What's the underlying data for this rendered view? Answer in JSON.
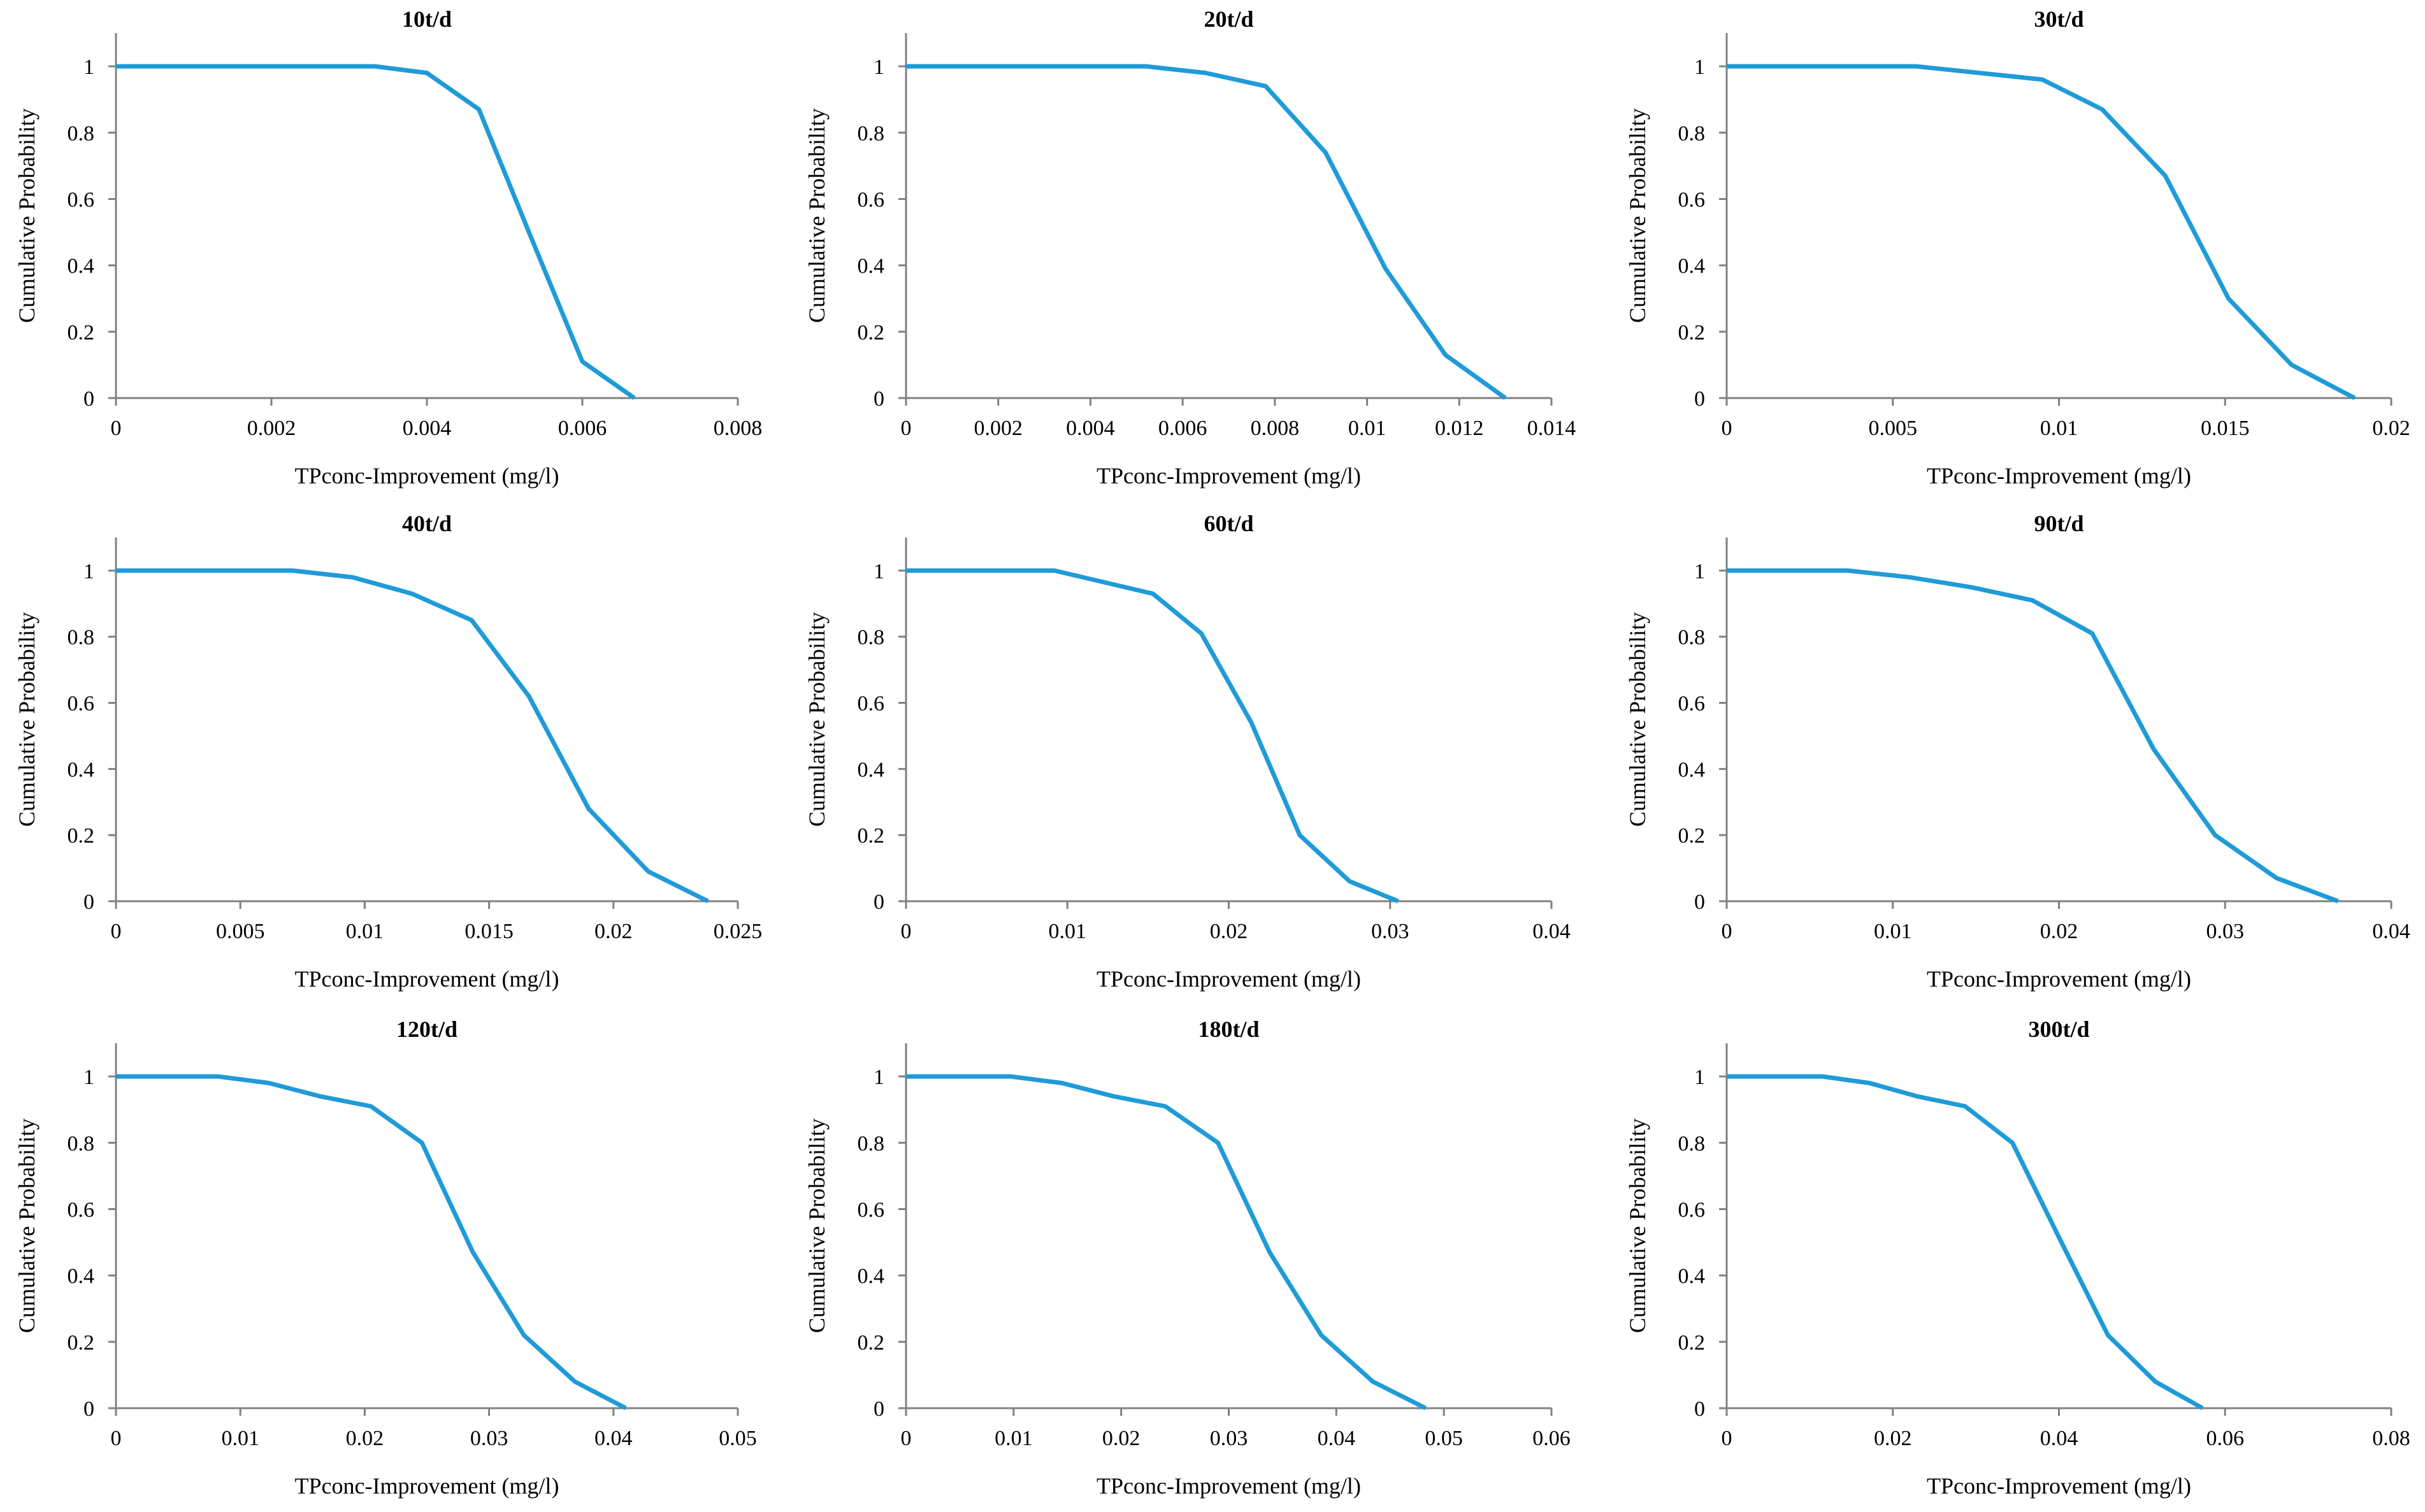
{
  "chart_data": [
    {
      "type": "line",
      "title": "10t/d",
      "xlabel": "TPconc-Improvement (mg/l)",
      "ylabel": "Cumulative Probability",
      "xlim": [
        0,
        0.008
      ],
      "ylim": [
        0,
        1.1
      ],
      "xticks": [
        0,
        0.002,
        0.004,
        0.006,
        0.008
      ],
      "xtick_labels": [
        "0",
        "0.002",
        "0.004",
        "0.006",
        "0.008"
      ],
      "yticks": [
        0,
        0.2,
        0.4,
        0.6,
        0.8,
        1
      ],
      "ytick_labels": [
        "0",
        "0.2",
        "0.4",
        "0.6",
        "0.8",
        "1"
      ],
      "series": [
        {
          "name": "10t/d",
          "color": "#1f9bd8",
          "x": [
            0,
            0.00333,
            0.004,
            0.00467,
            0.00533,
            0.006,
            0.00667
          ],
          "y": [
            1,
            1,
            0.98,
            0.87,
            0.49,
            0.11,
            0
          ]
        }
      ]
    },
    {
      "type": "line",
      "title": "20t/d",
      "xlabel": "TPconc-Improvement (mg/l)",
      "ylabel": "Cumulative Probability",
      "xlim": [
        0,
        0.014
      ],
      "ylim": [
        0,
        1.1
      ],
      "xticks": [
        0,
        0.002,
        0.004,
        0.006,
        0.008,
        0.01,
        0.012,
        0.014
      ],
      "xtick_labels": [
        "0",
        "0.002",
        "0.004",
        "0.006",
        "0.008",
        "0.01",
        "0.012",
        "0.014"
      ],
      "yticks": [
        0,
        0.2,
        0.4,
        0.6,
        0.8,
        1
      ],
      "ytick_labels": [
        "0",
        "0.2",
        "0.4",
        "0.6",
        "0.8",
        "1"
      ],
      "series": [
        {
          "name": "20t/d",
          "color": "#1f9bd8",
          "x": [
            0,
            0.0052,
            0.0065,
            0.0078,
            0.0091,
            0.0104,
            0.0117,
            0.013
          ],
          "y": [
            1,
            1,
            0.98,
            0.94,
            0.74,
            0.39,
            0.13,
            0
          ]
        }
      ]
    },
    {
      "type": "line",
      "title": "30t/d",
      "xlabel": "TPconc-Improvement (mg/l)",
      "ylabel": "Cumulative Probability",
      "xlim": [
        0,
        0.02
      ],
      "ylim": [
        0,
        1.1
      ],
      "xticks": [
        0,
        0.005,
        0.01,
        0.015,
        0.02
      ],
      "xtick_labels": [
        "0",
        "0.005",
        "0.01",
        "0.015",
        "0.02"
      ],
      "yticks": [
        0,
        0.2,
        0.4,
        0.6,
        0.8,
        1
      ],
      "ytick_labels": [
        "0",
        "0.2",
        "0.4",
        "0.6",
        "0.8",
        "1"
      ],
      "series": [
        {
          "name": "30t/d",
          "color": "#1f9bd8",
          "x": [
            0,
            0.0057,
            0.0095,
            0.0113,
            0.0132,
            0.0151,
            0.017,
            0.0189
          ],
          "y": [
            1,
            1,
            0.96,
            0.87,
            0.67,
            0.3,
            0.1,
            0
          ]
        }
      ]
    },
    {
      "type": "line",
      "title": "40t/d",
      "xlabel": "TPconc-Improvement (mg/l)",
      "ylabel": "Cumulative Probability",
      "xlim": [
        0,
        0.025
      ],
      "ylim": [
        0,
        1.1
      ],
      "xticks": [
        0,
        0.005,
        0.01,
        0.015,
        0.02,
        0.025
      ],
      "xtick_labels": [
        "0",
        "0.005",
        "0.01",
        "0.015",
        "0.02",
        "0.025"
      ],
      "yticks": [
        0,
        0.2,
        0.4,
        0.6,
        0.8,
        1
      ],
      "ytick_labels": [
        "0",
        "0.2",
        "0.4",
        "0.6",
        "0.8",
        "1"
      ],
      "series": [
        {
          "name": "40t/d",
          "color": "#1f9bd8",
          "x": [
            0,
            0.0071,
            0.0095,
            0.0119,
            0.0143,
            0.0166,
            0.019,
            0.0214,
            0.0238
          ],
          "y": [
            1,
            1,
            0.98,
            0.93,
            0.85,
            0.62,
            0.28,
            0.09,
            0
          ]
        }
      ]
    },
    {
      "type": "line",
      "title": "60t/d",
      "xlabel": "TPconc-Improvement (mg/l)",
      "ylabel": "Cumulative Probability",
      "xlim": [
        0,
        0.04
      ],
      "ylim": [
        0,
        1.1
      ],
      "xticks": [
        0,
        0.01,
        0.02,
        0.03,
        0.04
      ],
      "xtick_labels": [
        "0",
        "0.01",
        "0.02",
        "0.03",
        "0.04"
      ],
      "yticks": [
        0,
        0.2,
        0.4,
        0.6,
        0.8,
        1
      ],
      "ytick_labels": [
        "0",
        "0.2",
        "0.4",
        "0.6",
        "0.8",
        "1"
      ],
      "series": [
        {
          "name": "60t/d",
          "color": "#1f9bd8",
          "x": [
            0,
            0.0092,
            0.0153,
            0.0183,
            0.0214,
            0.0244,
            0.0275,
            0.0305
          ],
          "y": [
            1,
            1,
            0.93,
            0.81,
            0.54,
            0.2,
            0.06,
            0
          ]
        }
      ]
    },
    {
      "type": "line",
      "title": "90t/d",
      "xlabel": "TPconc-Improvement (mg/l)",
      "ylabel": "Cumulative Probability",
      "xlim": [
        0,
        0.04
      ],
      "ylim": [
        0,
        1.1
      ],
      "xticks": [
        0,
        0.01,
        0.02,
        0.03,
        0.04
      ],
      "xtick_labels": [
        "0",
        "0.01",
        "0.02",
        "0.03",
        "0.04"
      ],
      "yticks": [
        0,
        0.2,
        0.4,
        0.6,
        0.8,
        1
      ],
      "ytick_labels": [
        "0",
        "0.2",
        "0.4",
        "0.6",
        "0.8",
        "1"
      ],
      "series": [
        {
          "name": "90t/d",
          "color": "#1f9bd8",
          "x": [
            0,
            0.0073,
            0.011,
            0.0147,
            0.0184,
            0.022,
            0.0257,
            0.0294,
            0.0331,
            0.0368
          ],
          "y": [
            1,
            1,
            0.98,
            0.95,
            0.91,
            0.81,
            0.46,
            0.2,
            0.07,
            0
          ]
        }
      ]
    },
    {
      "type": "line",
      "title": "120t/d",
      "xlabel": "TPconc-Improvement (mg/l)",
      "ylabel": "Cumulative Probability",
      "xlim": [
        0,
        0.05
      ],
      "ylim": [
        0,
        1.1
      ],
      "xticks": [
        0,
        0.01,
        0.02,
        0.03,
        0.04,
        0.05
      ],
      "xtick_labels": [
        "0",
        "0.01",
        "0.02",
        "0.03",
        "0.04",
        "0.05"
      ],
      "yticks": [
        0,
        0.2,
        0.4,
        0.6,
        0.8,
        1
      ],
      "ytick_labels": [
        "0",
        "0.2",
        "0.4",
        "0.6",
        "0.8",
        "1"
      ],
      "series": [
        {
          "name": "120t/d",
          "color": "#1f9bd8",
          "x": [
            0,
            0.0082,
            0.0123,
            0.0164,
            0.0205,
            0.0246,
            0.0287,
            0.0328,
            0.0369,
            0.041
          ],
          "y": [
            1,
            1,
            0.98,
            0.94,
            0.91,
            0.8,
            0.47,
            0.22,
            0.08,
            0
          ]
        }
      ]
    },
    {
      "type": "line",
      "title": "180t/d",
      "xlabel": "TPconc-Improvement (mg/l)",
      "ylabel": "Cumulative Probability",
      "xlim": [
        0,
        0.06
      ],
      "ylim": [
        0,
        1.1
      ],
      "xticks": [
        0,
        0.01,
        0.02,
        0.03,
        0.04,
        0.05,
        0.06
      ],
      "xtick_labels": [
        "0",
        "0.01",
        "0.02",
        "0.03",
        "0.04",
        "0.05",
        "0.06"
      ],
      "yticks": [
        0,
        0.2,
        0.4,
        0.6,
        0.8,
        1
      ],
      "ytick_labels": [
        "0",
        "0.2",
        "0.4",
        "0.6",
        "0.8",
        "1"
      ],
      "series": [
        {
          "name": "180t/d",
          "color": "#1f9bd8",
          "x": [
            0,
            0.0097,
            0.0145,
            0.0193,
            0.0241,
            0.029,
            0.0338,
            0.0386,
            0.0434,
            0.0483
          ],
          "y": [
            1,
            1,
            0.98,
            0.94,
            0.91,
            0.8,
            0.47,
            0.22,
            0.08,
            0
          ]
        }
      ]
    },
    {
      "type": "line",
      "title": "300t/d",
      "xlabel": "TPconc-Improvement (mg/l)",
      "ylabel": "Cumulative Probability",
      "xlim": [
        0,
        0.08
      ],
      "ylim": [
        0,
        1.1
      ],
      "xticks": [
        0,
        0.02,
        0.04,
        0.06,
        0.08
      ],
      "xtick_labels": [
        "0",
        "0.02",
        "0.04",
        "0.06",
        "0.08"
      ],
      "yticks": [
        0,
        0.2,
        0.4,
        0.6,
        0.8,
        1
      ],
      "ytick_labels": [
        "0",
        "0.2",
        "0.4",
        "0.6",
        "0.8",
        "1"
      ],
      "series": [
        {
          "name": "300t/d",
          "color": "#1f9bd8",
          "x": [
            0,
            0.0115,
            0.0172,
            0.0229,
            0.0287,
            0.0344,
            0.0401,
            0.0459,
            0.0516,
            0.0573
          ],
          "y": [
            1,
            1,
            0.98,
            0.94,
            0.91,
            0.8,
            0.51,
            0.22,
            0.08,
            0
          ]
        }
      ]
    }
  ]
}
